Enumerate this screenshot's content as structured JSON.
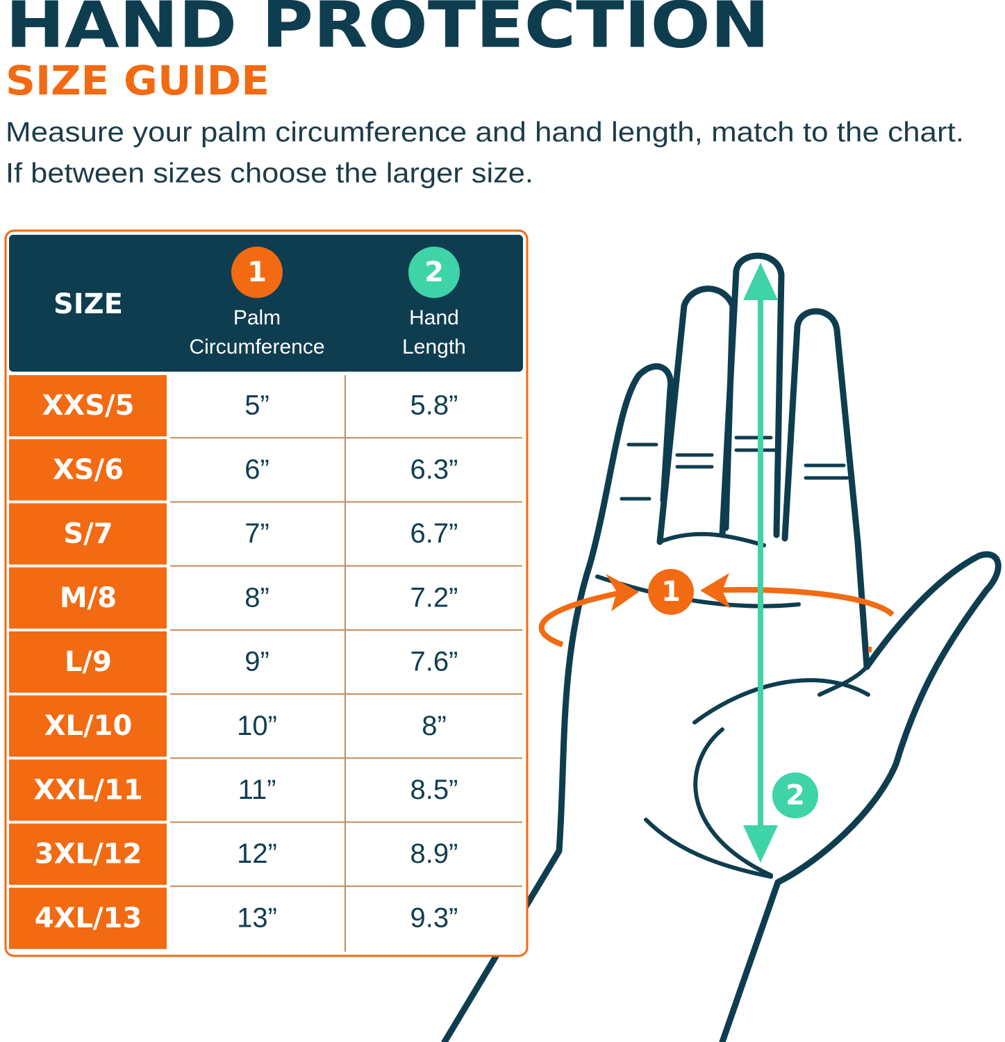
{
  "header": {
    "title": "HAND PROTECTION",
    "subtitle": "SIZE GUIDE",
    "instructions": [
      "Measure your palm circumference and hand length, match to the chart.",
      "If between sizes choose the larger size."
    ]
  },
  "table": {
    "headers": [
      {
        "label": "SIZE"
      },
      {
        "number": "1",
        "lines": [
          "Palm",
          "Circumference"
        ]
      },
      {
        "number": "2",
        "lines": [
          "Hand",
          "Length"
        ]
      }
    ],
    "rows": [
      [
        "XXS/5",
        "5”",
        "5.8”"
      ],
      [
        "XS/6",
        "6”",
        "6.3”"
      ],
      [
        "S/7",
        "7”",
        "6.7”"
      ],
      [
        "M/8",
        "8”",
        "7.2”"
      ],
      [
        "L/9",
        "9”",
        "7.6”"
      ],
      [
        "XL/10",
        "10”",
        "8”"
      ],
      [
        "XXL/11",
        "11”",
        "8.5”"
      ],
      [
        "3XL/12",
        "12”",
        "8.9”"
      ],
      [
        "4XL/13",
        "13”",
        "9.3”"
      ]
    ]
  },
  "hand": {
    "markers": [
      "1",
      "2"
    ]
  }
}
